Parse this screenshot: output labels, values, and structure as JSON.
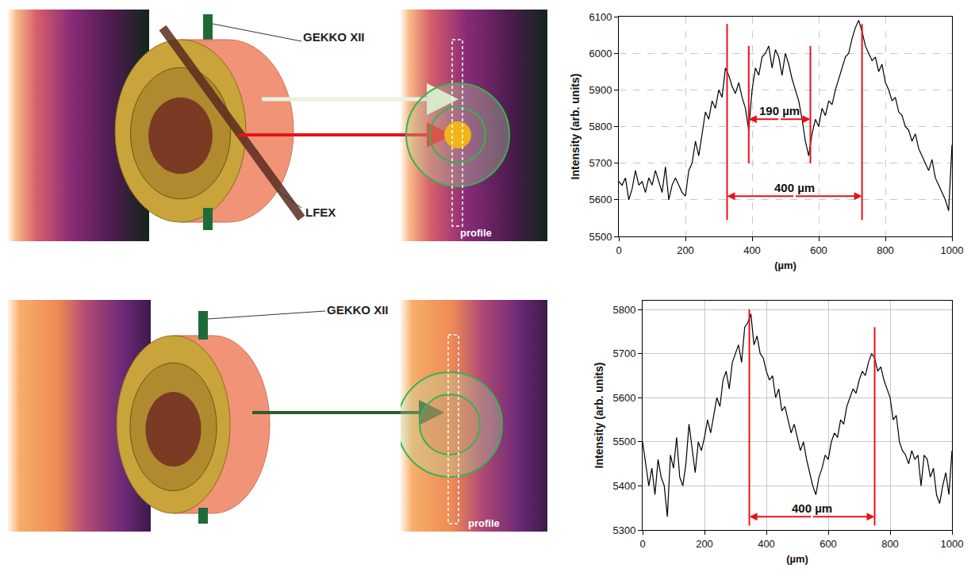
{
  "diagram": {
    "top": {
      "beam_labels": [
        "GEKKO XII",
        "LFEX"
      ],
      "profile_label": "profile"
    },
    "bottom": {
      "beam_labels": [
        "GEKKO XII"
      ],
      "profile_label": "profile"
    }
  },
  "chart_data": [
    {
      "type": "line",
      "color": "#000000",
      "grid": true,
      "x_label": "(µm)",
      "y_label": "Intensity (arb. units)",
      "xlim": [
        0,
        1000
      ],
      "xticks": [
        0,
        200,
        400,
        600,
        800,
        1000
      ],
      "ylim": [
        5500,
        6100
      ],
      "yticks": [
        5500,
        5600,
        5700,
        5800,
        5900,
        6000,
        6100
      ],
      "x": [
        0,
        10,
        20,
        30,
        40,
        50,
        60,
        70,
        80,
        90,
        100,
        110,
        120,
        130,
        140,
        150,
        160,
        170,
        180,
        190,
        200,
        210,
        220,
        230,
        240,
        250,
        260,
        270,
        280,
        290,
        300,
        310,
        320,
        330,
        340,
        350,
        360,
        370,
        380,
        390,
        400,
        410,
        420,
        430,
        440,
        450,
        460,
        470,
        480,
        490,
        500,
        510,
        520,
        530,
        540,
        550,
        560,
        570,
        580,
        590,
        600,
        610,
        620,
        630,
        640,
        650,
        660,
        670,
        680,
        690,
        700,
        710,
        720,
        730,
        740,
        750,
        760,
        770,
        780,
        790,
        800,
        810,
        820,
        830,
        840,
        850,
        860,
        870,
        880,
        890,
        900,
        910,
        920,
        930,
        940,
        950,
        960,
        970,
        980,
        990,
        1000
      ],
      "values": [
        5650,
        5640,
        5660,
        5600,
        5630,
        5680,
        5640,
        5650,
        5620,
        5660,
        5640,
        5680,
        5650,
        5620,
        5690,
        5600,
        5640,
        5660,
        5640,
        5620,
        5610,
        5680,
        5700,
        5760,
        5720,
        5780,
        5840,
        5820,
        5870,
        5850,
        5900,
        5880,
        5960,
        5940,
        5910,
        5890,
        5920,
        5880,
        5850,
        5790,
        5900,
        5960,
        5940,
        5990,
        6000,
        6020,
        5960,
        6010,
        5990,
        5940,
        6000,
        5970,
        5930,
        5900,
        5870,
        5820,
        5760,
        5720,
        5780,
        5820,
        5800,
        5850,
        5830,
        5870,
        5860,
        5900,
        5930,
        5960,
        5990,
        6000,
        6040,
        6070,
        6090,
        6060,
        6020,
        6000,
        5980,
        5990,
        5950,
        5970,
        5920,
        5900,
        5870,
        5880,
        5840,
        5830,
        5800,
        5790,
        5760,
        5780,
        5740,
        5720,
        5700,
        5680,
        5710,
        5660,
        5640,
        5620,
        5600,
        5570,
        5750
      ],
      "reference_lines": [
        {
          "x": 325,
          "y0": 5545,
          "y1": 6080
        },
        {
          "x": 390,
          "y0": 5700,
          "y1": 6020
        },
        {
          "x": 575,
          "y0": 5700,
          "y1": 6020
        },
        {
          "x": 730,
          "y0": 5545,
          "y1": 6080
        }
      ],
      "spans": [
        {
          "text": "190 µm",
          "x0": 390,
          "x1": 575,
          "y": 5820
        },
        {
          "text": "400 µm",
          "x0": 325,
          "x1": 730,
          "y": 5610
        }
      ]
    },
    {
      "type": "line",
      "color": "#000000",
      "grid": true,
      "x_label": "(µm)",
      "y_label": "Intensity (arb. units)",
      "xlim": [
        0,
        1000
      ],
      "xticks": [
        0,
        200,
        400,
        600,
        800,
        1000
      ],
      "ylim": [
        5300,
        5820
      ],
      "yticks": [
        5300,
        5400,
        5500,
        5600,
        5700,
        5800
      ],
      "x": [
        0,
        10,
        20,
        30,
        40,
        50,
        60,
        70,
        80,
        90,
        100,
        110,
        120,
        130,
        140,
        150,
        160,
        170,
        180,
        190,
        200,
        210,
        220,
        230,
        240,
        250,
        260,
        270,
        280,
        290,
        300,
        310,
        320,
        330,
        340,
        350,
        360,
        370,
        380,
        390,
        400,
        410,
        420,
        430,
        440,
        450,
        460,
        470,
        480,
        490,
        500,
        510,
        520,
        530,
        540,
        550,
        560,
        570,
        580,
        590,
        600,
        610,
        620,
        630,
        640,
        650,
        660,
        670,
        680,
        690,
        700,
        710,
        720,
        730,
        740,
        750,
        760,
        770,
        780,
        790,
        800,
        810,
        820,
        830,
        840,
        850,
        860,
        870,
        880,
        890,
        900,
        910,
        920,
        930,
        940,
        950,
        960,
        970,
        980,
        990,
        1000
      ],
      "values": [
        5500,
        5450,
        5400,
        5440,
        5380,
        5460,
        5420,
        5400,
        5330,
        5470,
        5440,
        5510,
        5420,
        5400,
        5450,
        5540,
        5480,
        5430,
        5500,
        5480,
        5510,
        5550,
        5520,
        5560,
        5600,
        5580,
        5640,
        5660,
        5620,
        5680,
        5700,
        5720,
        5680,
        5760,
        5770,
        5790,
        5720,
        5740,
        5700,
        5690,
        5660,
        5640,
        5650,
        5600,
        5620,
        5570,
        5580,
        5550,
        5520,
        5540,
        5510,
        5480,
        5500,
        5460,
        5430,
        5400,
        5380,
        5420,
        5440,
        5470,
        5460,
        5500,
        5520,
        5510,
        5550,
        5540,
        5580,
        5600,
        5620,
        5610,
        5640,
        5660,
        5650,
        5680,
        5700,
        5690,
        5660,
        5670,
        5640,
        5620,
        5600,
        5550,
        5560,
        5500,
        5480,
        5470,
        5450,
        5480,
        5460,
        5470,
        5400,
        5470,
        5460,
        5420,
        5440,
        5380,
        5360,
        5400,
        5430,
        5380,
        5480
      ],
      "reference_lines": [
        {
          "x": 345,
          "y0": 5310,
          "y1": 5800
        },
        {
          "x": 750,
          "y0": 5310,
          "y1": 5760
        }
      ],
      "spans": [
        {
          "text": "400 µm",
          "x0": 345,
          "x1": 750,
          "y": 5330
        }
      ]
    }
  ]
}
